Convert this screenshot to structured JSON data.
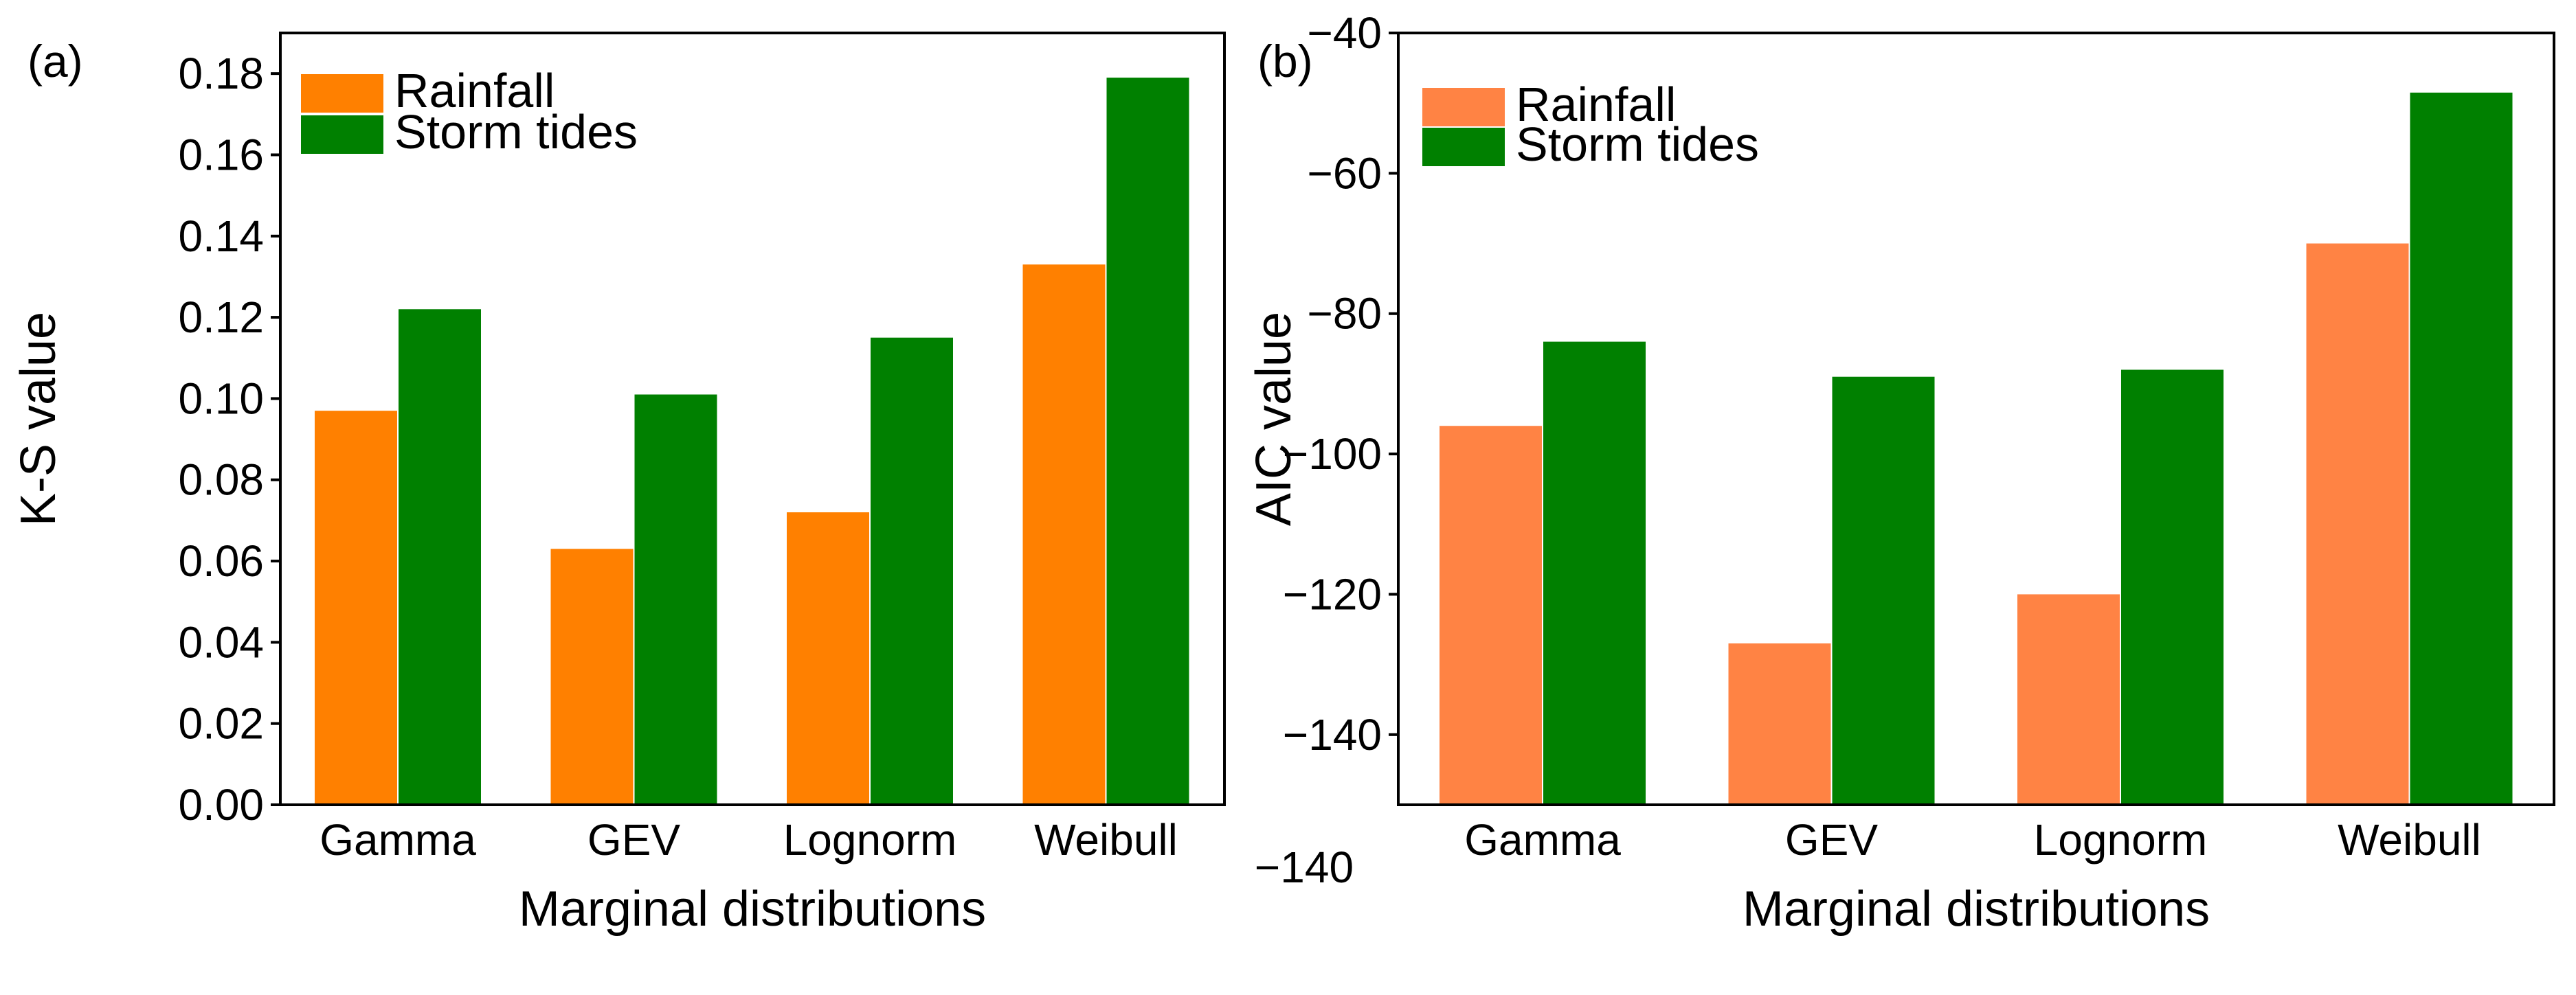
{
  "chart_data": [
    {
      "type": "bar",
      "panel_label": "(a)",
      "categories": [
        "Gamma",
        "GEV",
        "Lognorm",
        "Weibull"
      ],
      "series": [
        {
          "name": "Rainfall",
          "color": "#FF8000",
          "values": [
            0.097,
            0.063,
            0.072,
            0.133
          ]
        },
        {
          "name": "Storm tides",
          "color": "#008000",
          "values": [
            0.122,
            0.101,
            0.115,
            0.179
          ]
        }
      ],
      "xlabel": "Marginal distributions",
      "ylabel": "K-S value",
      "ylim": [
        0,
        0.19
      ],
      "yticks": [
        0.0,
        0.02,
        0.04,
        0.06,
        0.08,
        0.1,
        0.12,
        0.14,
        0.16,
        0.18
      ],
      "ytick_labels": [
        "0.00",
        "0.02",
        "0.04",
        "0.06",
        "0.08",
        "0.10",
        "0.12",
        "0.14",
        "0.16",
        "0.18"
      ],
      "legend_position": "top-left",
      "grid": false
    },
    {
      "type": "bar",
      "panel_label": "(b)",
      "categories": [
        "Gamma",
        "GEV",
        "Lognorm",
        "Weibull"
      ],
      "series": [
        {
          "name": "Rainfall",
          "color": "#FF8344",
          "values": [
            -96,
            -127,
            -120,
            -70
          ]
        },
        {
          "name": "Storm tides",
          "color": "#008000",
          "values": [
            -84,
            -89,
            -88,
            -48.5
          ]
        }
      ],
      "xlabel": "Marginal distributions",
      "ylabel": "AIC value",
      "ylim": [
        -150,
        -40
      ],
      "baseline": -150,
      "yticks": [
        -140,
        -120,
        -100,
        -80,
        -60,
        -40
      ],
      "ytick_labels": [
        "−140",
        "−120",
        "−100",
        "−80",
        "−60",
        "−40"
      ],
      "extra_label": "−140",
      "legend_position": "top-left",
      "grid": false
    }
  ]
}
